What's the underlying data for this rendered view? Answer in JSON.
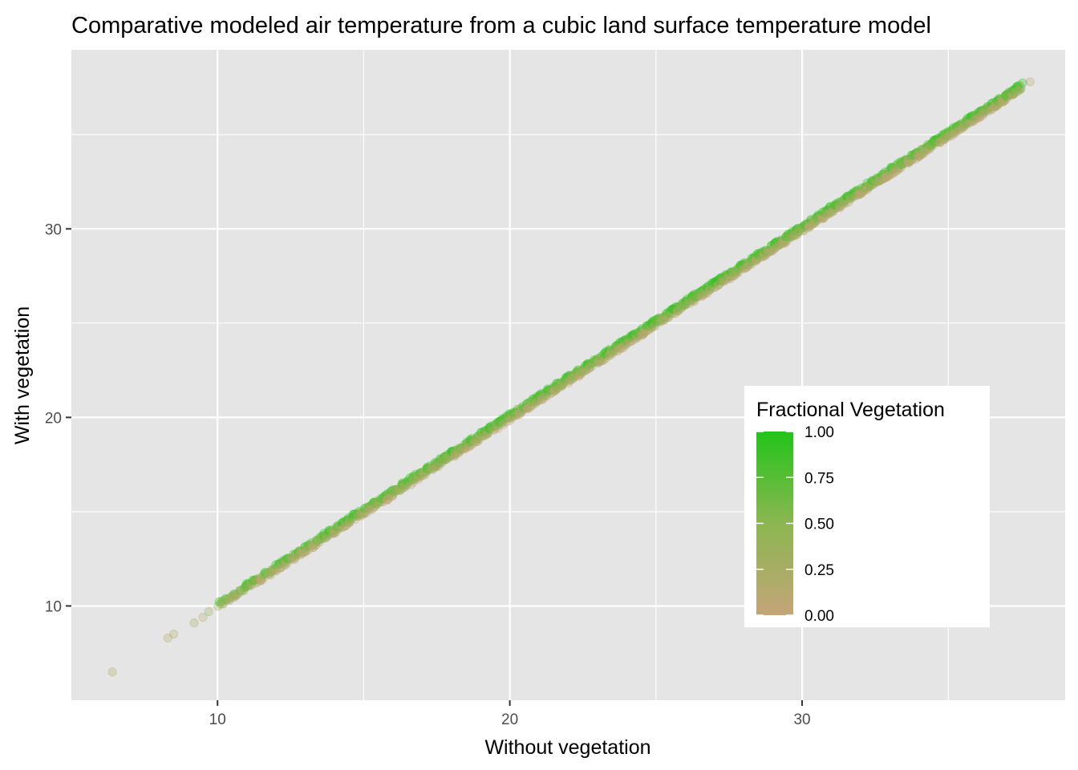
{
  "chart_data": {
    "type": "scatter",
    "title": "Comparative modeled air temperature from a cubic land surface temperature model",
    "xlabel": "Without vegetation",
    "ylabel": "With vegetation",
    "xlim": [
      5.0,
      39.0
    ],
    "ylim": [
      5.0,
      39.5
    ],
    "x_major_ticks": [
      10,
      20,
      30
    ],
    "y_major_ticks": [
      10,
      20,
      30
    ],
    "x_minor_ticks": [
      15,
      25,
      35
    ],
    "y_minor_ticks": [
      15,
      25,
      35
    ],
    "x_tick_labels": [
      "10",
      "20",
      "30"
    ],
    "y_tick_labels": [
      "10",
      "20",
      "30"
    ],
    "grid": true,
    "point_alpha": 0.3,
    "relationship": "y ≈ x; points with vegetation fraction 1 lie slightly above, fraction 0 slightly below",
    "anchor_points": [
      {
        "x": 6.4,
        "y": 6.5,
        "veg": 0.2
      },
      {
        "x": 8.3,
        "y": 8.3,
        "veg": 0.1
      },
      {
        "x": 8.5,
        "y": 8.5,
        "veg": 0.2
      },
      {
        "x": 9.2,
        "y": 9.1,
        "veg": 0.3
      },
      {
        "x": 9.5,
        "y": 9.4,
        "veg": 0.1
      },
      {
        "x": 9.7,
        "y": 9.7,
        "veg": 0.4
      },
      {
        "x": 10.1,
        "y": 10.1,
        "veg": 0.5
      },
      {
        "x": 37.8,
        "y": 37.8,
        "veg": 0.1
      }
    ],
    "dense_range": [
      10.0,
      37.5
    ],
    "legend": {
      "title": "Fractional Vegetation",
      "position": "right, inside plot",
      "type": "colorbar",
      "min": 0.0,
      "max": 1.0,
      "low_color": "#C4A578",
      "mid_color": "#8BB651",
      "high_color": "#22C41A",
      "ticks": [
        0.0,
        0.25,
        0.5,
        0.75,
        1.0
      ],
      "tick_labels": [
        "0.00",
        "0.25",
        "0.50",
        "0.75",
        "1.00"
      ]
    },
    "colors": {
      "panel_background": "#E5E5E5",
      "grid_line": "#FFFFFF",
      "tick_label": "#4D4D4D",
      "legend_background": "#FFFFFF"
    }
  }
}
